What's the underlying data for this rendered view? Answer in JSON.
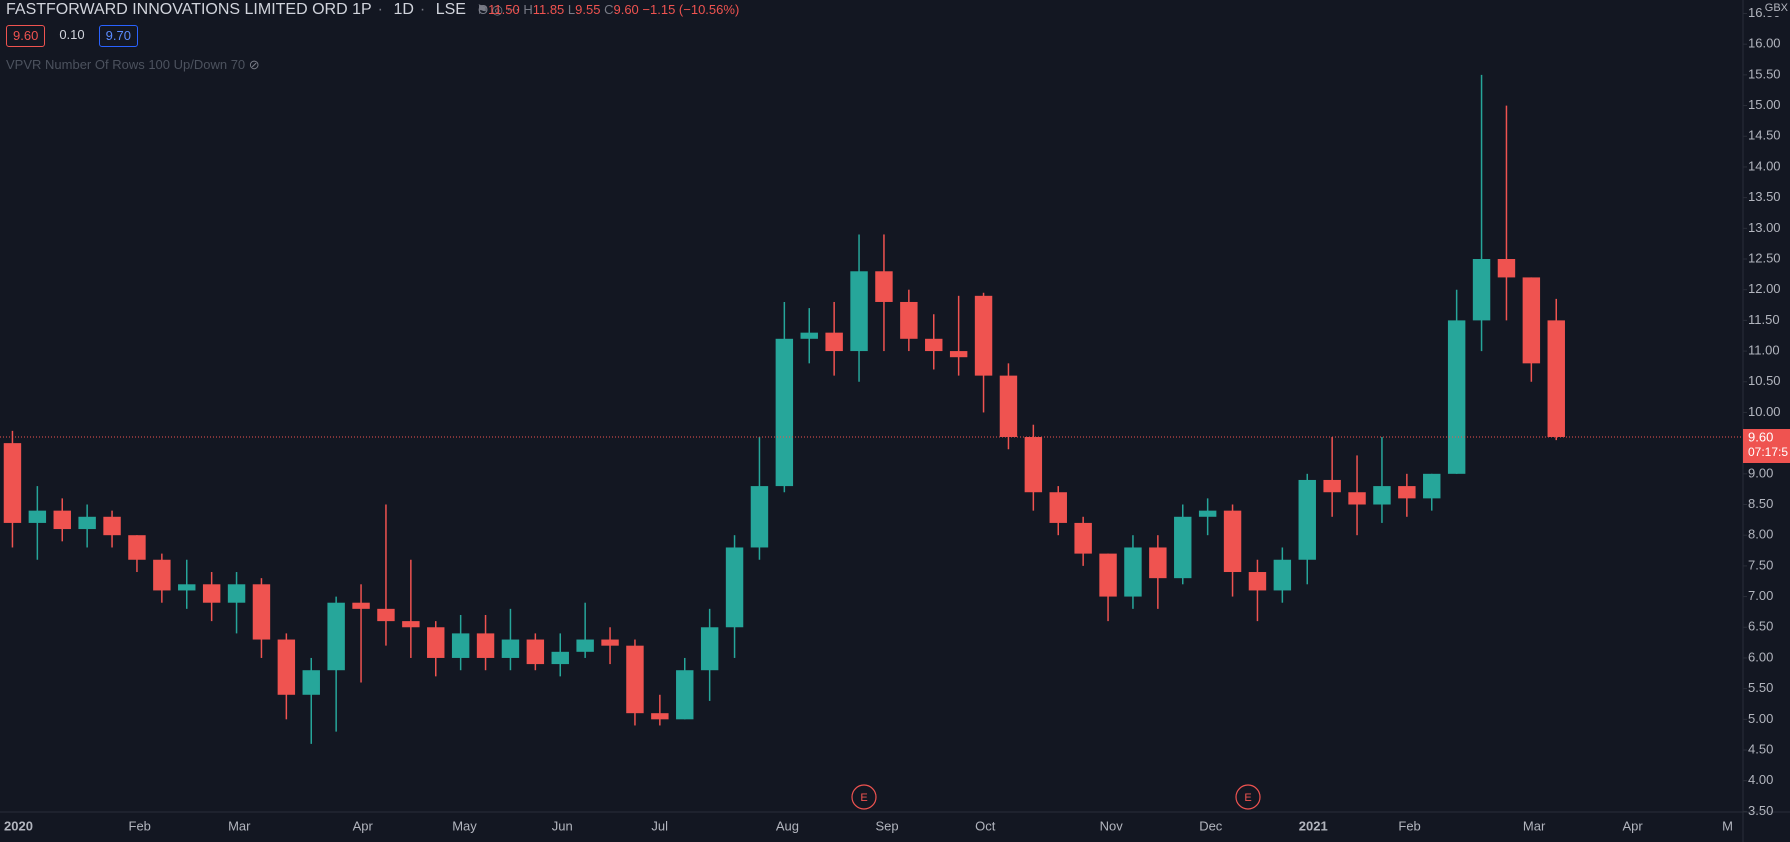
{
  "header": {
    "symbol": "FASTFORWARD INNOVATIONS LIMITED ORD 1P",
    "interval": "1D",
    "exchange": "LSE",
    "ohlc": [
      {
        "key": "O",
        "value": "11.50"
      },
      {
        "key": "H",
        "value": "11.85"
      },
      {
        "key": "L",
        "value": "9.55"
      },
      {
        "key": "C",
        "value": "9.60"
      }
    ],
    "change": "−1.15 (−10.56%)",
    "bid": "9.60",
    "spread": "0.10",
    "ask": "9.70",
    "indicator": "VPVR Number Of Rows 100 Up/Down 70"
  },
  "chart_data": {
    "type": "candlestick",
    "currency": "GBX",
    "price_label": "9.60",
    "countdown": "07:17:5",
    "events": [
      "E",
      "E"
    ],
    "up_color": "#26a69a",
    "down_color": "#ef5350",
    "categories": [
      "2020",
      null,
      null,
      null,
      null,
      "Feb",
      null,
      null,
      null,
      "Mar",
      null,
      null,
      null,
      null,
      "Apr",
      null,
      null,
      null,
      "May",
      null,
      null,
      null,
      "Jun",
      null,
      null,
      null,
      "Jul",
      null,
      null,
      null,
      null,
      "Aug",
      null,
      null,
      null,
      "Sep",
      null,
      null,
      null,
      "Oct",
      null,
      null,
      null,
      null,
      "Nov",
      null,
      null,
      null,
      "Dec",
      null,
      null,
      null,
      "2021",
      null,
      null,
      null,
      "Feb",
      null,
      null,
      null,
      null,
      "Mar",
      null,
      null,
      null,
      "Apr",
      null,
      null,
      null,
      "M"
    ],
    "open": [
      9.5,
      8.2,
      8.4,
      8.1,
      8.3,
      8.0,
      7.6,
      7.1,
      7.2,
      6.9,
      7.2,
      6.3,
      5.4,
      5.8,
      6.9,
      6.8,
      6.6,
      6.5,
      6.0,
      6.4,
      6.0,
      6.3,
      5.9,
      6.1,
      6.3,
      6.2,
      5.1,
      5.0,
      5.8,
      6.5,
      7.8,
      8.8,
      11.2,
      11.3,
      11.0,
      12.3,
      11.8,
      11.2,
      11.0,
      11.9,
      10.6,
      9.6,
      8.7,
      8.2,
      7.7,
      7.0,
      7.8,
      7.3,
      8.3,
      8.4,
      7.4,
      7.1,
      7.6,
      8.9,
      8.7,
      8.5,
      8.8,
      8.6,
      9.0,
      11.5,
      12.5,
      12.2,
      11.5,
      null,
      null,
      null,
      null,
      null,
      null,
      null
    ],
    "high": [
      9.7,
      8.8,
      8.6,
      8.5,
      8.4,
      8.0,
      7.7,
      7.6,
      7.4,
      7.4,
      7.3,
      6.4,
      6.0,
      7.0,
      7.2,
      8.5,
      7.6,
      6.6,
      6.7,
      6.7,
      6.8,
      6.4,
      6.4,
      6.9,
      6.5,
      6.3,
      5.4,
      6.0,
      6.8,
      8.0,
      9.6,
      11.8,
      11.7,
      11.8,
      12.9,
      12.9,
      12.0,
      11.6,
      11.9,
      11.95,
      10.8,
      9.8,
      8.8,
      8.3,
      7.7,
      8.0,
      8.0,
      8.5,
      8.6,
      8.5,
      7.6,
      7.8,
      9.0,
      9.6,
      9.3,
      9.6,
      9.0,
      9.0,
      12.0,
      15.5,
      15.0,
      12.2,
      11.85,
      null,
      null,
      null,
      null,
      null,
      null,
      null
    ],
    "low": [
      7.8,
      7.6,
      7.9,
      7.8,
      7.8,
      7.4,
      6.9,
      6.8,
      6.6,
      6.4,
      6.0,
      5.0,
      4.6,
      4.8,
      5.6,
      6.2,
      6.0,
      5.7,
      5.8,
      5.8,
      5.8,
      5.8,
      5.7,
      6.0,
      5.9,
      4.9,
      4.9,
      5.0,
      5.3,
      6.0,
      7.6,
      8.7,
      10.8,
      10.6,
      10.5,
      11.0,
      11.0,
      10.7,
      10.6,
      10.0,
      9.4,
      8.4,
      8.0,
      7.5,
      6.6,
      6.8,
      6.8,
      7.2,
      8.0,
      7.0,
      6.6,
      6.9,
      7.2,
      8.3,
      8.0,
      8.2,
      8.3,
      8.4,
      9.0,
      11.0,
      11.5,
      10.5,
      9.55,
      null,
      null,
      null,
      null,
      null,
      null,
      null
    ],
    "close": [
      8.2,
      8.4,
      8.1,
      8.3,
      8.0,
      7.6,
      7.1,
      7.2,
      6.9,
      7.2,
      6.3,
      5.4,
      5.8,
      6.9,
      6.8,
      6.6,
      6.5,
      6.0,
      6.4,
      6.0,
      6.3,
      5.9,
      6.1,
      6.3,
      6.2,
      5.1,
      5.0,
      5.8,
      6.5,
      7.8,
      8.8,
      11.2,
      11.3,
      11.0,
      12.3,
      11.8,
      11.2,
      11.0,
      10.9,
      10.6,
      9.6,
      8.7,
      8.2,
      7.7,
      7.0,
      7.8,
      7.3,
      8.3,
      8.4,
      7.4,
      7.1,
      7.6,
      8.9,
      8.7,
      8.5,
      8.8,
      8.6,
      9.0,
      11.5,
      12.5,
      12.2,
      10.8,
      9.6,
      null,
      null,
      null,
      null,
      null,
      null,
      null
    ],
    "ylim": [
      3.49,
      16.72
    ],
    "yticks": [
      {
        "value": 3.5,
        "label": "3.50"
      },
      {
        "value": 4,
        "label": "4.00"
      },
      {
        "value": 4.5,
        "label": "4.50"
      },
      {
        "value": 5,
        "label": "5.00"
      },
      {
        "value": 5.5,
        "label": "5.50"
      },
      {
        "value": 6,
        "label": "6.00"
      },
      {
        "value": 6.5,
        "label": "6.50"
      },
      {
        "value": 7,
        "label": "7.00"
      },
      {
        "value": 7.5,
        "label": "7.50"
      },
      {
        "value": 8,
        "label": "8.00"
      },
      {
        "value": 8.5,
        "label": "8.50"
      },
      {
        "value": 9,
        "label": "9.00"
      },
      {
        "value": 9.5,
        "label": "9.50"
      },
      {
        "value": 10,
        "label": "10.00"
      },
      {
        "value": 10.5,
        "label": "10.50"
      },
      {
        "value": 11,
        "label": "11.00"
      },
      {
        "value": 11.5,
        "label": "11.50"
      },
      {
        "value": 12,
        "label": "12.00"
      },
      {
        "value": 12.5,
        "label": "12.50"
      },
      {
        "value": 13,
        "label": "13.00"
      },
      {
        "value": 13.5,
        "label": "13.50"
      },
      {
        "value": 14,
        "label": "14.00"
      },
      {
        "value": 14.5,
        "label": "14.50"
      },
      {
        "value": 15,
        "label": "15.00"
      },
      {
        "value": 15.5,
        "label": "15.50"
      },
      {
        "value": 16,
        "label": "16.00"
      },
      {
        "value": 16.5,
        "label": "16.50"
      }
    ]
  }
}
